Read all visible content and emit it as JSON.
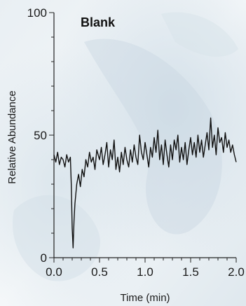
{
  "chart_data": {
    "type": "line",
    "title": "Blank",
    "xlabel": "Time (min)",
    "ylabel": "Relative Abundance",
    "xlim": [
      0.0,
      2.0
    ],
    "ylim": [
      0,
      100
    ],
    "x_ticks": [
      "0.0",
      "0.5",
      "1.0",
      "1.5",
      "2.0"
    ],
    "y_ticks": [
      "0",
      "50",
      "100"
    ],
    "grid": false,
    "legend": "none",
    "colors": {
      "line": "#111111",
      "axis": "#222222"
    },
    "series": [
      {
        "x": [
          0.0,
          0.02,
          0.04,
          0.06,
          0.08,
          0.1,
          0.12,
          0.14,
          0.16,
          0.18,
          0.19,
          0.2,
          0.21,
          0.22,
          0.23,
          0.25,
          0.27,
          0.29,
          0.31,
          0.33,
          0.35,
          0.37,
          0.39,
          0.41,
          0.43,
          0.45,
          0.47,
          0.5,
          0.52,
          0.54,
          0.56,
          0.58,
          0.6,
          0.62,
          0.64,
          0.66,
          0.68,
          0.7,
          0.72,
          0.74,
          0.76,
          0.78,
          0.8,
          0.82,
          0.84,
          0.86,
          0.88,
          0.9,
          0.92,
          0.94,
          0.96,
          0.98,
          1.0,
          1.02,
          1.04,
          1.06,
          1.08,
          1.1,
          1.12,
          1.14,
          1.16,
          1.18,
          1.2,
          1.22,
          1.24,
          1.26,
          1.28,
          1.3,
          1.32,
          1.34,
          1.36,
          1.38,
          1.4,
          1.42,
          1.44,
          1.46,
          1.48,
          1.5,
          1.52,
          1.54,
          1.56,
          1.58,
          1.6,
          1.62,
          1.64,
          1.66,
          1.68,
          1.7,
          1.72,
          1.74,
          1.76,
          1.78,
          1.8,
          1.82,
          1.84,
          1.86,
          1.88,
          1.9,
          1.92,
          1.94,
          1.96,
          1.98,
          2.0
        ],
        "values": [
          42,
          39,
          43,
          38,
          41,
          40,
          37,
          42,
          39,
          41,
          30,
          12,
          4,
          15,
          22,
          30,
          34,
          29,
          36,
          33,
          40,
          37,
          43,
          39,
          41,
          36,
          44,
          40,
          45,
          38,
          42,
          47,
          37,
          44,
          40,
          48,
          36,
          41,
          35,
          43,
          38,
          45,
          40,
          37,
          44,
          39,
          46,
          41,
          38,
          50,
          43,
          40,
          47,
          42,
          37,
          45,
          41,
          49,
          43,
          52,
          40,
          46,
          38,
          48,
          42,
          37,
          46,
          40,
          48,
          44,
          50,
          39,
          45,
          40,
          47,
          38,
          44,
          49,
          42,
          47,
          41,
          50,
          43,
          48,
          41,
          46,
          51,
          44,
          57,
          45,
          50,
          42,
          53,
          47,
          49,
          43,
          51,
          45,
          48,
          43,
          46,
          42,
          39
        ]
      }
    ]
  }
}
